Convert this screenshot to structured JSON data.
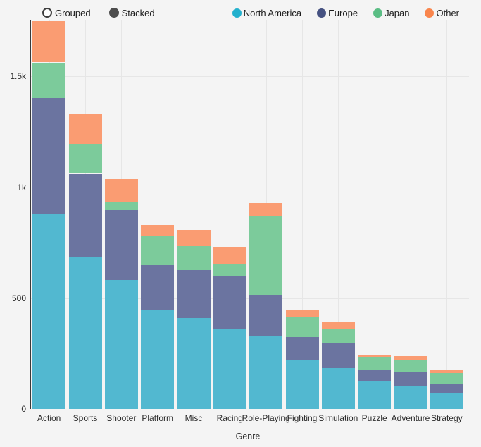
{
  "controls": {
    "options": [
      {
        "label": "Grouped",
        "selected": false
      },
      {
        "label": "Stacked",
        "selected": true
      }
    ]
  },
  "legend": {
    "items": [
      {
        "label": "North America",
        "color": "#22b0cd"
      },
      {
        "label": "Europe",
        "color": "#455181"
      },
      {
        "label": "Japan",
        "color": "#5abd84"
      },
      {
        "label": "Other",
        "color": "#f9854c"
      }
    ]
  },
  "chart_data": {
    "type": "bar",
    "mode": "stacked",
    "title": "",
    "xlabel": "Genre",
    "ylabel": "",
    "grid": true,
    "legend_position": "top-right",
    "background": "#f4f4f4",
    "categories": [
      "Action",
      "Sports",
      "Shooter",
      "Platform",
      "Misc",
      "Racing",
      "Role-Playing",
      "Fighting",
      "Simulation",
      "Puzzle",
      "Adventure",
      "Strategy"
    ],
    "series": [
      {
        "name": "North America",
        "color": "#52b8d0",
        "values": [
          877.8,
          683.4,
          582.6,
          447.1,
          410.2,
          359.4,
          327.3,
          223.6,
          183.3,
          123.8,
          105.8,
          68.7
        ]
      },
      {
        "name": "Europe",
        "color": "#6b74a0",
        "values": [
          525.0,
          376.8,
          313.3,
          201.6,
          216.0,
          238.4,
          188.1,
          101.3,
          113.4,
          50.8,
          64.1,
          45.3
        ]
      },
      {
        "name": "Japan",
        "color": "#7ccb9b",
        "values": [
          159.9,
          135.4,
          38.3,
          130.8,
          107.8,
          56.7,
          352.3,
          87.3,
          63.7,
          57.3,
          52.1,
          49.5
        ]
      },
      {
        "name": "Other",
        "color": "#fa9c72",
        "values": [
          187.4,
          135.0,
          102.7,
          51.6,
          75.3,
          77.3,
          59.6,
          36.7,
          31.5,
          12.5,
          16.8,
          11.4
        ]
      }
    ],
    "yticks": [
      {
        "value": 0,
        "label": "0"
      },
      {
        "value": 500,
        "label": "500"
      },
      {
        "value": 1000,
        "label": "1k"
      },
      {
        "value": 1500,
        "label": "1.5k"
      }
    ],
    "ylim": [
      0,
      1755
    ]
  }
}
